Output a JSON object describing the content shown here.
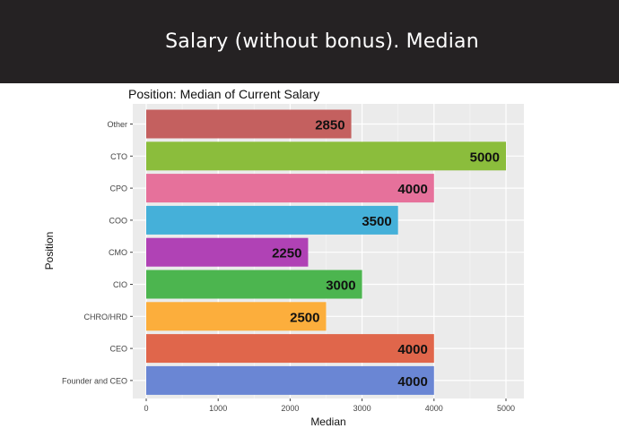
{
  "header": {
    "title": "Salary (without bonus). Median"
  },
  "chart_data": {
    "type": "bar",
    "orientation": "horizontal",
    "title": "Position: Median of Current Salary",
    "xlabel": "Median",
    "ylabel": "Position",
    "xlim": [
      0,
      5200
    ],
    "xticks": [
      0,
      1000,
      2000,
      3000,
      4000,
      5000
    ],
    "grid": true,
    "categories": [
      "Other",
      "CTO",
      "CPO",
      "COO",
      "CMO",
      "CIO",
      "CHRO/HRD",
      "CEO",
      "Founder and CEO"
    ],
    "values": [
      2850,
      5000,
      4000,
      3500,
      2250,
      3000,
      2500,
      4000,
      4000
    ],
    "data_labels": [
      "2850",
      "5000",
      "4000",
      "3500",
      "2250",
      "3000",
      "2500",
      "4000",
      "4000"
    ],
    "colors": [
      "#c4605f",
      "#8bbd3c",
      "#e6719b",
      "#45b0d9",
      "#b042b5",
      "#4cb54f",
      "#fcae3c",
      "#e0664b",
      "#6a86d4"
    ]
  }
}
